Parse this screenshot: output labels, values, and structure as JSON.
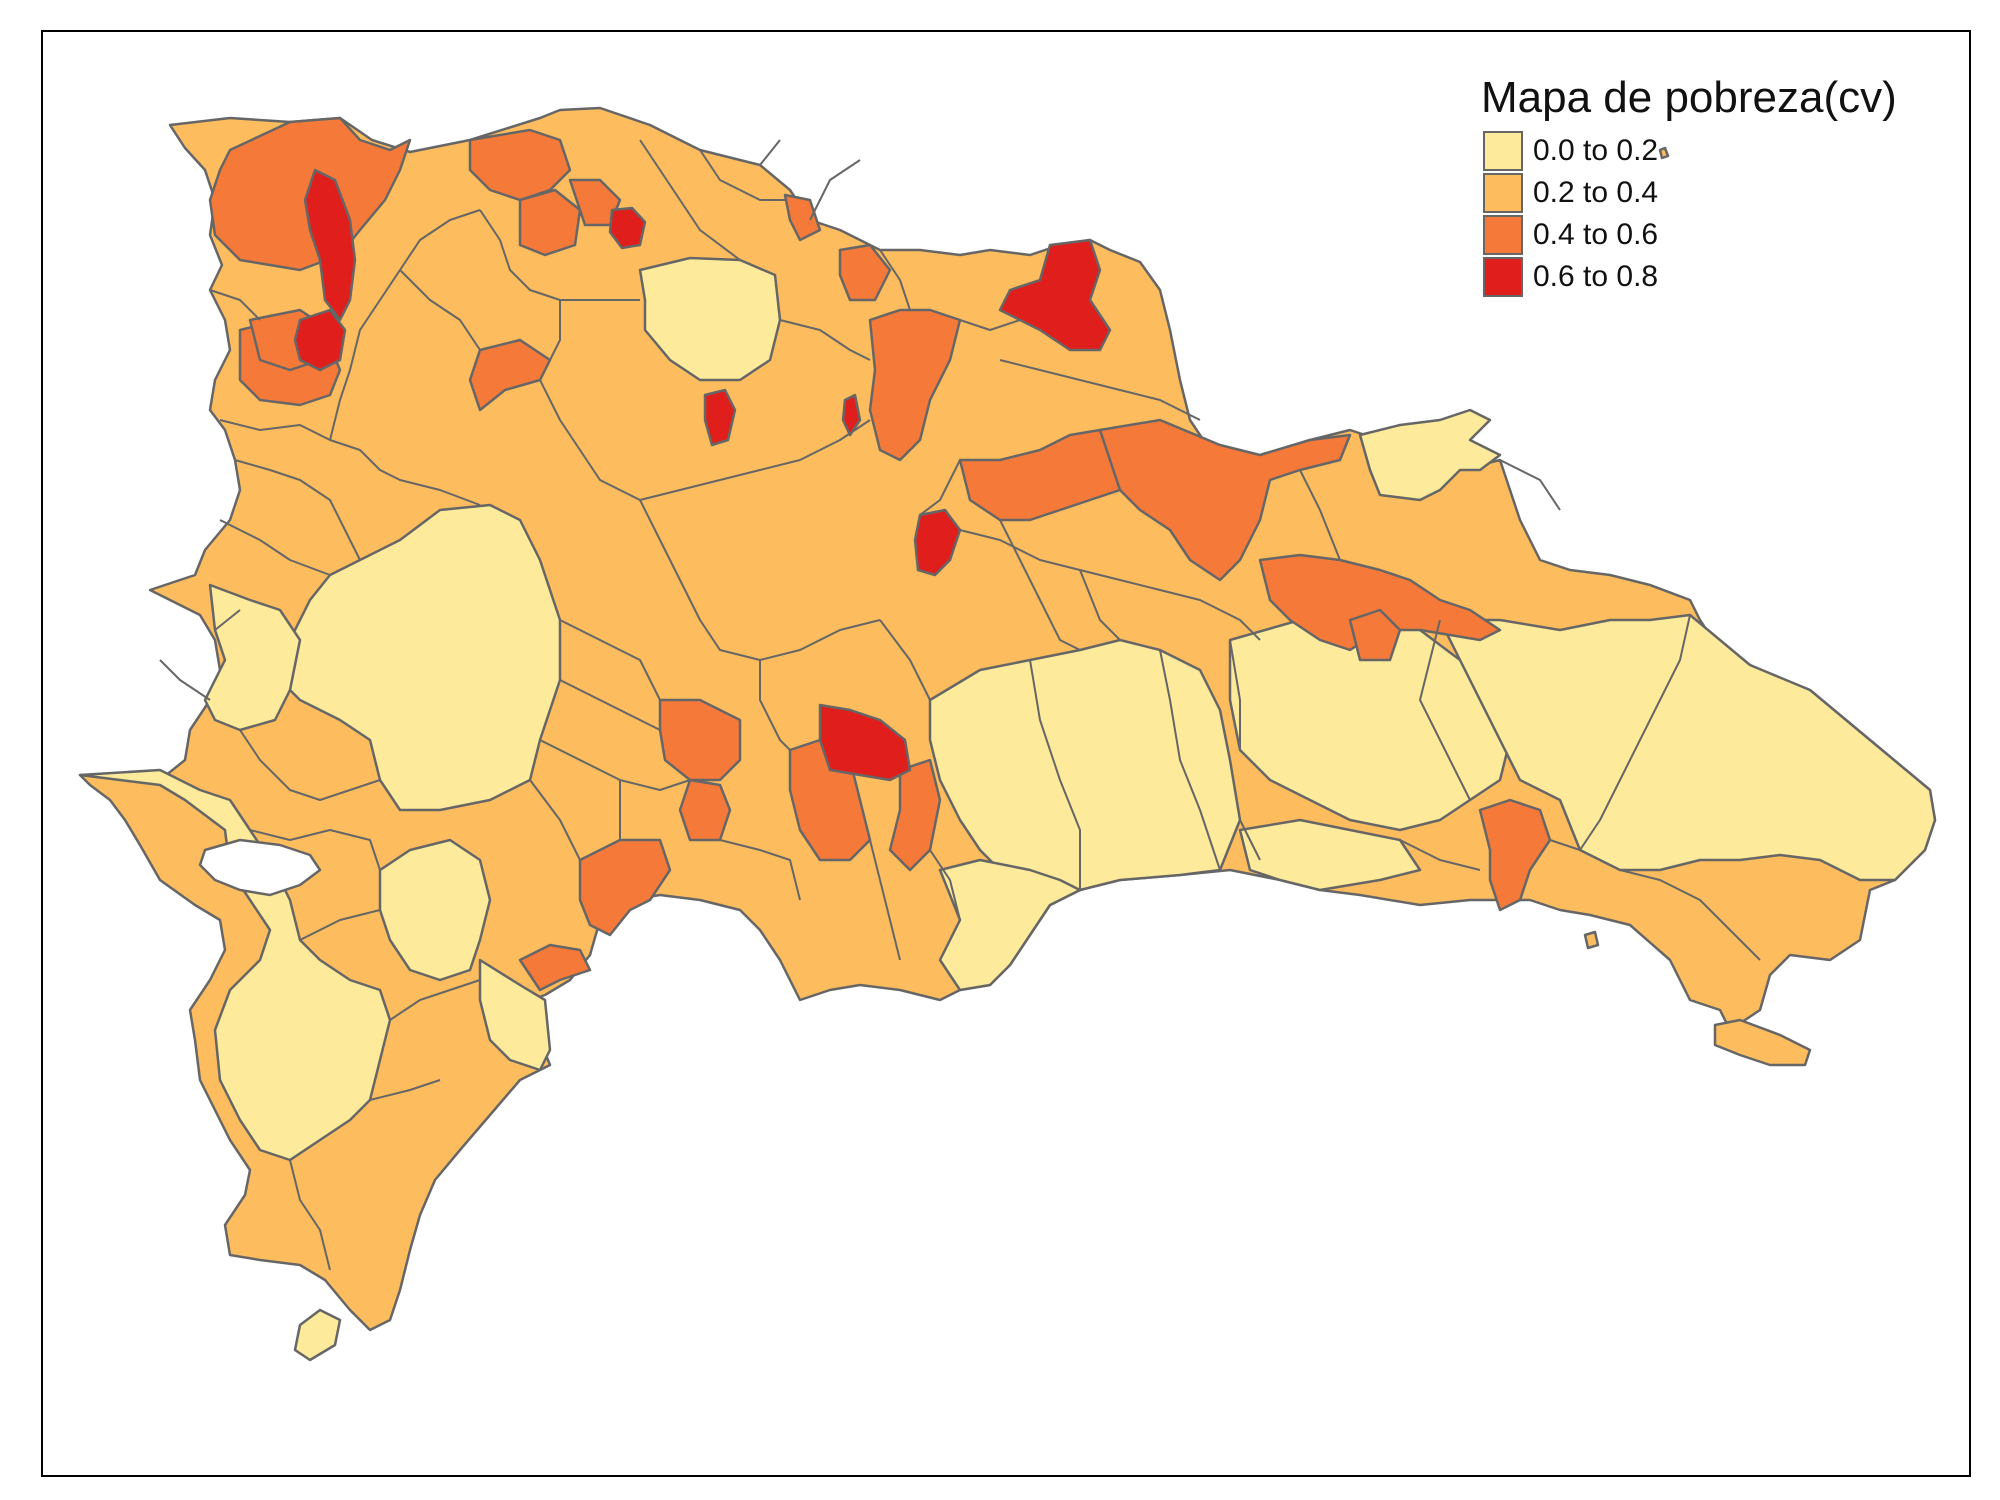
{
  "legend": {
    "title": "Mapa de pobreza(cv)",
    "items": [
      {
        "label": "0.0 to 0.2",
        "color": "#fdea9b"
      },
      {
        "label": "0.2 to 0.4",
        "color": "#fdbd5e"
      },
      {
        "label": "0.4 to 0.6",
        "color": "#f57a3a"
      },
      {
        "label": "0.6 to 0.8",
        "color": "#e01e1c"
      }
    ]
  },
  "style": {
    "border_color": "#666666",
    "background": "#ffffff"
  }
}
